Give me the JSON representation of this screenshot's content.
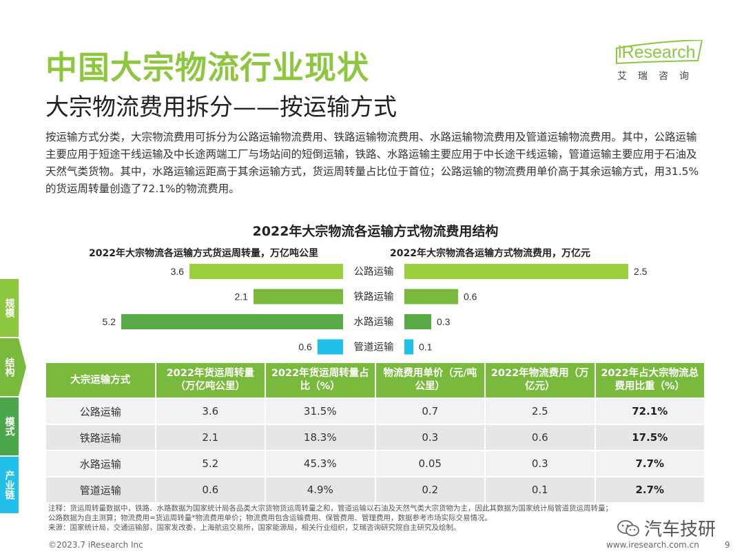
{
  "header": {
    "title": "中国大宗物流行业现状",
    "subtitle": "大宗物流费用拆分——按运输方式"
  },
  "logo": {
    "word": "iResearch",
    "cn": "艾瑞咨询",
    "color": "#8dc63f"
  },
  "intro": "按运输方式分类，大宗物流费用可拆分为公路运输物流费用、铁路运输物流费用、水路运输物流费用及管道运输物流费用。其中，公路运输主要应用于短途干线运输及中长途两端工厂与场站间的短倒运输，铁路、水路运输主要应用于中长途干线运输，管道运输主要应用于石油及天然气类货物。其中，水路运输运距高于其余运输方式，货运周转量占比位于首位；公路运输的物流费用单价高于其余运输方式，用31.5%的货运周转量创造了72.1%的物流费用。",
  "side_tabs": [
    {
      "label": "规模",
      "color": "#8dc63f"
    },
    {
      "label": "结构",
      "color": "#79b93c"
    },
    {
      "label": "模式",
      "color": "#4aa84a"
    },
    {
      "label": "产业链",
      "color": "#22c0e8"
    }
  ],
  "chart_data": {
    "type": "bar",
    "title": "2022年大宗物流各运输方式物流费用结构",
    "categories": [
      "公路运输",
      "铁路运输",
      "水路运输",
      "管道运输"
    ],
    "series": [
      {
        "name": "2022年大宗物流各运输方式货运周转量，万亿吨公里",
        "values": [
          3.6,
          2.1,
          5.2,
          0.6
        ],
        "labels": [
          "3.6",
          "2.1",
          "5.2",
          "0.6"
        ],
        "colors": [
          "#9ccf3c",
          "#79b93c",
          "#5aab48",
          "#22c0e8"
        ],
        "orientation": "left",
        "xlim": [
          0,
          5.2
        ]
      },
      {
        "name": "2022年大宗物流各运输方式物流费用，万亿元",
        "values": [
          2.5,
          0.6,
          0.3,
          0.1
        ],
        "labels": [
          "2.5",
          "0.6",
          "0.3",
          "0.1"
        ],
        "colors": [
          "#9ccf3c",
          "#79b93c",
          "#5aab48",
          "#22c0e8"
        ],
        "orientation": "right",
        "xlim": [
          0,
          2.5
        ]
      }
    ]
  },
  "table": {
    "headers": [
      "大宗运输方式",
      "2022年货运周转量（万亿吨公里）",
      "2022年货运周转量占比（%）",
      "物流费用单价（元/吨公里）",
      "2022年物流费用（万亿元）",
      "2022年占大宗物流总费用比重（%）"
    ],
    "rows": [
      [
        "公路运输",
        "3.6",
        "31.5%",
        "0.7",
        "2.5",
        "72.1%"
      ],
      [
        "铁路运输",
        "2.1",
        "18.3%",
        "0.3",
        "0.6",
        "17.5%"
      ],
      [
        "水路运输",
        "5.2",
        "45.3%",
        "0.05",
        "0.3",
        "7.7%"
      ],
      [
        "管道运输",
        "0.6",
        "4.9%",
        "0.2",
        "0.1",
        "2.7%"
      ]
    ]
  },
  "notes": {
    "line1": "注释：货运周转量数据中，铁路、水路数据为国家统计局各品类大宗货物货运周转量之和，管道运输以石油及天然气类大宗货物为主，因此其数据为国家统计局管道货运周转量；",
    "line2": "公路数据为自主测算；物流费用=货运周转量*物流费用单价；物流费用包含运输费用、保管费用、管理费用，数据参考市场实际交易情况。",
    "line3": "来源：国家统计局，交通运输部，国家发改委，上海航运交易所，国家能源局，相关行业组织，艾瑞咨询研究院自主研究及绘制。"
  },
  "footer": {
    "copyright": "©2023.7 iResearch Inc",
    "website": "www.iresearch.com.cn",
    "page": "9",
    "watermark": "汽车技研"
  }
}
